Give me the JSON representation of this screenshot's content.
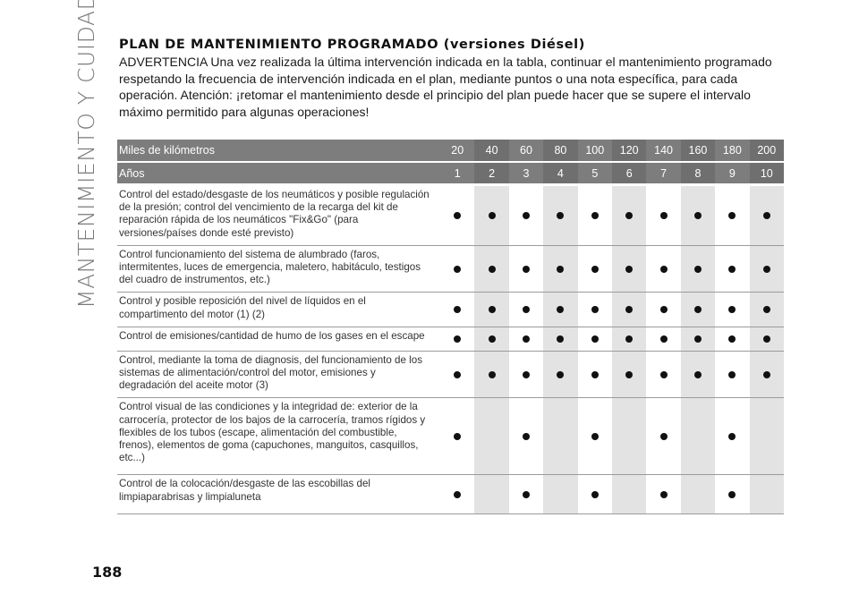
{
  "side_title": "MANTENIMIENTO Y CUIDADO",
  "page_number": "188",
  "title": "PLAN DE MANTENIMIENTO PROGRAMADO (versiones Diésel)",
  "warning": "ADVERTENCIA Una vez realizada la última intervención indicada en la tabla, continuar el mantenimiento programado respetando la frecuencia de intervención indicada en el plan, mediante puntos o una nota específica, para cada operación. Atención: ¡retomar el mantenimiento desde el principio del plan puede hacer que se supere el intervalo máximo permitido para algunas operaciones!",
  "table": {
    "km_label": "Miles de kilómetros",
    "km": [
      "20",
      "40",
      "60",
      "80",
      "100",
      "120",
      "140",
      "160",
      "180",
      "200"
    ],
    "years_label": "Años",
    "years": [
      "1",
      "2",
      "3",
      "4",
      "5",
      "6",
      "7",
      "8",
      "9",
      "10"
    ],
    "rows": [
      {
        "text": "Control del estado/desgaste de los neumáticos y posible regulación de la presión; control del vencimiento de la recarga del kit de reparación rápida de los neumáticos \"Fix&Go\" (para versiones/países donde esté previsto)",
        "marks": [
          1,
          1,
          1,
          1,
          1,
          1,
          1,
          1,
          1,
          1
        ]
      },
      {
        "text": "Control funcionamiento del sistema de alumbrado (faros, intermitentes, luces de emergencia, maletero, habitáculo, testigos del cuadro de instrumentos, etc.)",
        "marks": [
          1,
          1,
          1,
          1,
          1,
          1,
          1,
          1,
          1,
          1
        ]
      },
      {
        "text": "Control y posible reposición del nivel de líquidos en el compartimento del motor (1) (2)",
        "marks": [
          1,
          1,
          1,
          1,
          1,
          1,
          1,
          1,
          1,
          1
        ]
      },
      {
        "text": "Control de emisiones/cantidad de humo de los gases en el escape",
        "marks": [
          1,
          1,
          1,
          1,
          1,
          1,
          1,
          1,
          1,
          1
        ]
      },
      {
        "text": "Control, mediante la toma de diagnosis, del funcionamiento de los sistemas de alimentación/control del motor, emisiones y degradación del aceite motor (3)",
        "marks": [
          1,
          1,
          1,
          1,
          1,
          1,
          1,
          1,
          1,
          1
        ]
      },
      {
        "text": "Control visual de las condiciones y la integridad de: exterior de la carrocería, protector de los bajos de la carrocería, tramos rígidos y flexibles de los tubos (escape, alimentación del combustible, frenos), elementos de goma (capuchones, manguitos, casquillos, etc...)",
        "marks": [
          1,
          0,
          1,
          0,
          1,
          0,
          1,
          0,
          1,
          0
        ]
      },
      {
        "text": "Control de la colocación/desgaste de las escobillas del limpiaparabrisas y limpialuneta",
        "marks": [
          1,
          0,
          1,
          0,
          1,
          0,
          1,
          0,
          1,
          0
        ]
      }
    ]
  }
}
